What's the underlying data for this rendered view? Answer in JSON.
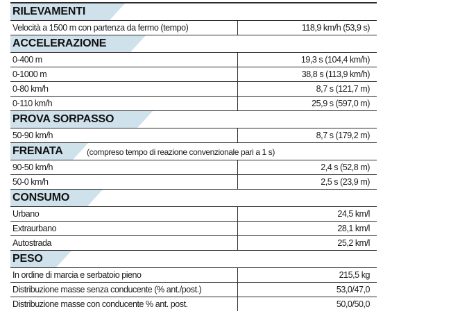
{
  "colors": {
    "header_band": "#cfe1eb",
    "rule": "#2a2a2a"
  },
  "sections": [
    {
      "title": "RILEVAMENTI",
      "rows": [
        {
          "label": "Velocità a 1500 m con partenza da fermo (tempo)",
          "value": "118,9 km/h (53,9 s)"
        }
      ]
    },
    {
      "title": "ACCELERAZIONE",
      "rows": [
        {
          "label": "0-400 m",
          "value": "19,3 s (104,4 km/h)"
        },
        {
          "label": "0-1000 m",
          "value": "38,8 s (113,9 km/h)"
        },
        {
          "label": "0-80 km/h",
          "value": "8,7 s (121,7 m)"
        },
        {
          "label": "0-110 km/h",
          "value": "25,9 s (597,0 m)"
        }
      ]
    },
    {
      "title": "PROVA SORPASSO",
      "rows": [
        {
          "label": "50-90 km/h",
          "value": "8,7 s (179,2 m)"
        }
      ]
    },
    {
      "title": "FRENATA",
      "note": "(compreso tempo di reazione convenzionale pari a 1 s)",
      "rows": [
        {
          "label": "90-50 km/h",
          "value": "2,4 s (52,8 m)"
        },
        {
          "label": "50-0 km/h",
          "value": "2,5 s (23,9 m)"
        }
      ]
    },
    {
      "title": "CONSUMO",
      "rows": [
        {
          "label": "Urbano",
          "value": "24,5 km/l"
        },
        {
          "label": "Extraurbano",
          "value": "28,1 km/l"
        },
        {
          "label": "Autostrada",
          "value": "25,2 km/l"
        }
      ]
    },
    {
      "title": "PESO",
      "rows": [
        {
          "label": "In ordine di marcia e serbatoio pieno",
          "value": "215,5 kg"
        },
        {
          "label": "Distribuzione masse senza conducente (% ant./post.)",
          "value": "53,0/47,0"
        },
        {
          "label": "Distribuzione masse con conducente % ant. post.",
          "value": "50,0/50,0"
        }
      ]
    }
  ]
}
